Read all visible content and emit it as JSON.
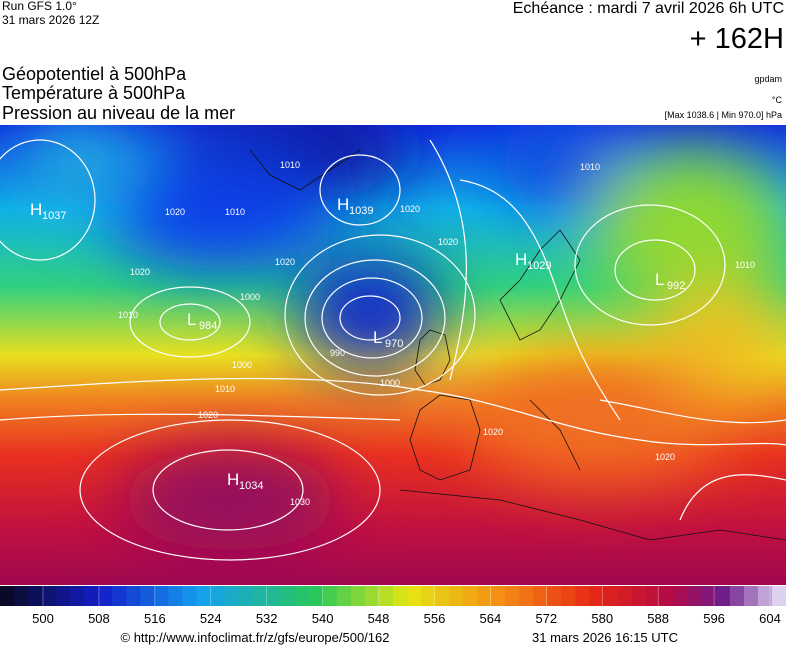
{
  "header": {
    "run": "Run GFS 1.0°",
    "run_date": "31 mars 2026 12Z",
    "valid": "Echéance : mardi 7 avril 2026 6h UTC",
    "lead": "+ 162H",
    "titles": [
      "Géopotentiel à 500hPa",
      "Température à 500hPa",
      "Pression au niveau de la mer"
    ],
    "units": [
      "gpdam",
      "°C",
      "[Max 1038.6 | Min 970.0] hPa"
    ]
  },
  "centers": [
    {
      "letter": "H",
      "value": "1037"
    },
    {
      "letter": "H",
      "value": "1039"
    },
    {
      "letter": "H",
      "value": "1029"
    },
    {
      "letter": "L",
      "value": "992"
    },
    {
      "letter": "L",
      "value": "984"
    },
    {
      "letter": "L",
      "value": "970"
    },
    {
      "letter": "H",
      "value": "1034"
    }
  ],
  "isobar_labels": [
    "1010",
    "1020",
    "1010",
    "1000",
    "1020",
    "1010",
    "1000",
    "1010",
    "1020",
    "1030",
    "990",
    "1000",
    "1020",
    "1020",
    "1020",
    "1010",
    "1010",
    "1020",
    "1020"
  ],
  "colorbar": {
    "ticks": [
      500,
      508,
      516,
      524,
      532,
      540,
      548,
      556,
      564,
      572,
      580,
      588,
      596,
      604
    ]
  },
  "footer": {
    "source": "© http://www.infoclimat.fr/z/gfs/europe/500/162",
    "timestamp": "31 mars 2026 16:15 UTC"
  }
}
